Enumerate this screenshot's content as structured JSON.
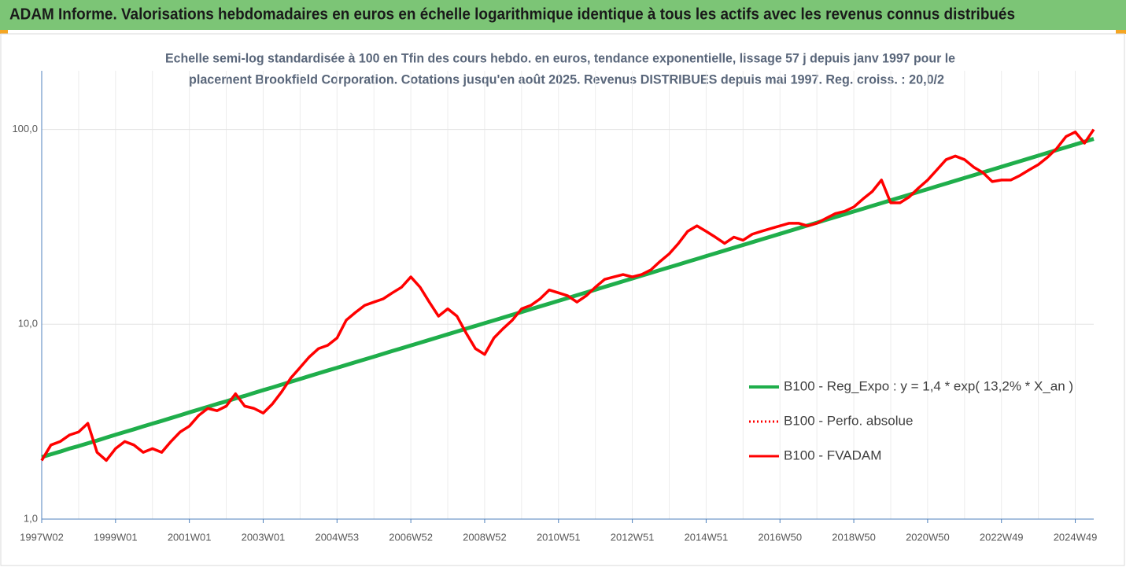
{
  "chart_data": {
    "type": "line",
    "title": "ADAM Informe. Valorisations hebdomadaires en euros en échelle logarithmique identique à tous les actifs avec les revenus connus distribués",
    "subtitle": [
      "Echelle semi-log standardisée à 100 en Tfin des cours hebdo. en euros, tendance exponentielle, lissage 57 j depuis janv 1997 pour le",
      "placement Brookfield Corporation. Cotations jusqu'en août 2025. Revenus DISTRIBUES depuis mai 1997. Reg. croiss. : 20,0/2"
    ],
    "log_scale": true,
    "grid": true,
    "legend": "right",
    "ylim": [
      1,
      200
    ],
    "yticks": [
      {
        "value": 1,
        "label": "1,0"
      },
      {
        "value": 10,
        "label": "10,0"
      },
      {
        "value": 100,
        "label": "100,0"
      }
    ],
    "categories": [
      "1997W02",
      null,
      null,
      null,
      null,
      null,
      null,
      null,
      "1999W01",
      null,
      null,
      null,
      null,
      null,
      null,
      null,
      "2001W01",
      null,
      null,
      null,
      null,
      null,
      null,
      null,
      "2003W01",
      null,
      null,
      null,
      null,
      null,
      null,
      null,
      "2004W53",
      null,
      null,
      null,
      null,
      null,
      null,
      null,
      "2006W52",
      null,
      null,
      null,
      null,
      null,
      null,
      null,
      "2008W52",
      null,
      null,
      null,
      null,
      null,
      null,
      null,
      "2010W51",
      null,
      null,
      null,
      null,
      null,
      null,
      null,
      "2012W51",
      null,
      null,
      null,
      null,
      null,
      null,
      null,
      "2014W51",
      null,
      null,
      null,
      null,
      null,
      null,
      null,
      "2016W50",
      null,
      null,
      null,
      null,
      null,
      null,
      null,
      "2018W50",
      null,
      null,
      null,
      null,
      null,
      null,
      null,
      "2020W50",
      null,
      null,
      null,
      null,
      null,
      null,
      null,
      "2022W49",
      null,
      null,
      null,
      null,
      null,
      null,
      null,
      "2024W49",
      null,
      null
    ],
    "series": [
      {
        "name": "B100 - Reg_Expo : y = 1,4 * exp( 13,2% *  X_an )",
        "color": "#1fae4b",
        "style": "solid",
        "width": 5,
        "values": [
          2.08,
          2.15,
          2.22,
          2.3,
          2.37,
          2.45,
          2.53,
          2.62,
          2.71,
          2.8,
          2.89,
          2.99,
          3.09,
          3.19,
          3.3,
          3.41,
          3.53,
          3.65,
          3.77,
          3.9,
          4.02,
          4.16,
          4.29,
          4.44,
          4.59,
          4.74,
          4.9,
          5.07,
          5.24,
          5.42,
          5.6,
          5.79,
          5.98,
          6.18,
          6.39,
          6.6,
          6.82,
          7.05,
          7.29,
          7.53,
          7.78,
          8.04,
          8.31,
          8.59,
          8.88,
          9.18,
          9.49,
          9.8,
          10.13,
          10.47,
          10.82,
          11.18,
          11.56,
          11.95,
          12.35,
          12.76,
          13.19,
          13.63,
          14.09,
          14.56,
          15.05,
          15.56,
          16.08,
          16.62,
          17.18,
          17.76,
          18.35,
          18.97,
          19.6,
          20.26,
          20.94,
          21.64,
          22.37,
          23.12,
          23.9,
          24.7,
          25.52,
          26.38,
          27.26,
          28.18,
          29.12,
          30.1,
          31.11,
          32.15,
          33.23,
          34.35,
          35.5,
          36.69,
          37.92,
          39.19,
          40.51,
          41.87,
          43.27,
          44.72,
          46.22,
          47.78,
          49.38,
          51.04,
          52.75,
          54.52,
          56.35,
          58.24,
          60.19,
          62.22,
          64.3,
          66.46,
          68.69,
          70.99,
          73.37,
          75.83,
          78.38,
          81.01,
          83.72,
          86.53,
          89.44
        ]
      },
      {
        "name": "B100 - Perfo. absolue",
        "color": "#ff0000",
        "style": "dotted",
        "width": 3,
        "values": [
          2.0,
          2.4,
          2.5,
          2.7,
          2.8,
          3.1,
          2.2,
          2.0,
          2.3,
          2.5,
          2.4,
          2.2,
          2.3,
          2.2,
          2.5,
          2.8,
          3.0,
          3.4,
          3.7,
          3.6,
          3.8,
          4.4,
          3.8,
          3.7,
          3.5,
          3.9,
          4.5,
          5.3,
          6.0,
          6.8,
          7.5,
          7.8,
          8.5,
          10.5,
          11.5,
          12.5,
          13,
          13.5,
          14.5,
          15.5,
          17.5,
          15.5,
          13,
          11,
          12,
          11,
          9,
          7.5,
          7.0,
          8.5,
          9.5,
          10.5,
          12,
          12.5,
          13.5,
          15,
          14.5,
          14,
          13,
          14,
          15.5,
          17,
          17.5,
          18,
          17.5,
          18,
          19,
          21,
          23,
          26,
          30,
          32,
          30,
          28,
          26,
          28,
          27,
          29,
          30,
          31,
          32,
          33,
          33,
          32,
          33,
          35,
          37,
          38,
          40,
          44,
          48,
          55,
          42,
          42,
          45,
          50,
          55,
          62,
          70,
          73,
          70,
          64,
          60,
          54,
          55,
          55,
          58,
          62,
          66,
          72,
          80,
          92,
          97,
          85,
          100
        ]
      },
      {
        "name": "B100 - FVADAM",
        "color": "#ff0000",
        "style": "solid",
        "width": 3.5,
        "values": [
          2.0,
          2.4,
          2.5,
          2.7,
          2.8,
          3.1,
          2.2,
          2.0,
          2.3,
          2.5,
          2.4,
          2.2,
          2.3,
          2.2,
          2.5,
          2.8,
          3.0,
          3.4,
          3.7,
          3.6,
          3.8,
          4.4,
          3.8,
          3.7,
          3.5,
          3.9,
          4.5,
          5.3,
          6.0,
          6.8,
          7.5,
          7.8,
          8.5,
          10.5,
          11.5,
          12.5,
          13,
          13.5,
          14.5,
          15.5,
          17.5,
          15.5,
          13,
          11,
          12,
          11,
          9,
          7.5,
          7.0,
          8.5,
          9.5,
          10.5,
          12,
          12.5,
          13.5,
          15,
          14.5,
          14,
          13,
          14,
          15.5,
          17,
          17.5,
          18,
          17.5,
          18,
          19,
          21,
          23,
          26,
          30,
          32,
          30,
          28,
          26,
          28,
          27,
          29,
          30,
          31,
          32,
          33,
          33,
          32,
          33,
          35,
          37,
          38,
          40,
          44,
          48,
          55,
          42,
          42,
          45,
          50,
          55,
          62,
          70,
          73,
          70,
          64,
          60,
          54,
          55,
          55,
          58,
          62,
          66,
          72,
          80,
          92,
          97,
          85,
          100
        ]
      }
    ]
  }
}
